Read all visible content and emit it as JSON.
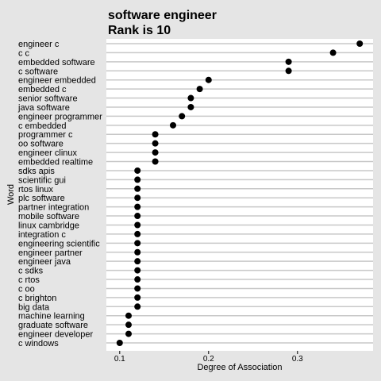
{
  "chart_data": {
    "type": "scatter",
    "title": "software engineer",
    "subtitle": "Rank is 10",
    "xlabel": "Degree of Association",
    "ylabel": "Word",
    "xlim": [
      0.085,
      0.385
    ],
    "xticks": [
      0.1,
      0.2,
      0.3
    ],
    "xtick_labels": [
      "0.1",
      "0.2",
      "0.3"
    ],
    "grid": "horizontal",
    "colors": {
      "background": "#e5e5e5",
      "panel": "#ffffff",
      "grid": "#c8c8c8",
      "point": "#000000"
    },
    "points": [
      {
        "label": "engineer c",
        "value": 0.37
      },
      {
        "label": "c c",
        "value": 0.34
      },
      {
        "label": "embedded software",
        "value": 0.29
      },
      {
        "label": "c software",
        "value": 0.29
      },
      {
        "label": "engineer embedded",
        "value": 0.2
      },
      {
        "label": "embedded c",
        "value": 0.19
      },
      {
        "label": "senior software",
        "value": 0.18
      },
      {
        "label": "java software",
        "value": 0.18
      },
      {
        "label": "engineer programmer",
        "value": 0.17
      },
      {
        "label": "c embedded",
        "value": 0.16
      },
      {
        "label": "programmer c",
        "value": 0.14
      },
      {
        "label": "oo software",
        "value": 0.14
      },
      {
        "label": "engineer clinux",
        "value": 0.14
      },
      {
        "label": "embedded realtime",
        "value": 0.14
      },
      {
        "label": "sdks apis",
        "value": 0.12
      },
      {
        "label": "scientific gui",
        "value": 0.12
      },
      {
        "label": "rtos linux",
        "value": 0.12
      },
      {
        "label": "plc software",
        "value": 0.12
      },
      {
        "label": "partner integration",
        "value": 0.12
      },
      {
        "label": "mobile software",
        "value": 0.12
      },
      {
        "label": "linux cambridge",
        "value": 0.12
      },
      {
        "label": "integration c",
        "value": 0.12
      },
      {
        "label": "engineering scientific",
        "value": 0.12
      },
      {
        "label": "engineer partner",
        "value": 0.12
      },
      {
        "label": "engineer java",
        "value": 0.12
      },
      {
        "label": "c sdks",
        "value": 0.12
      },
      {
        "label": "c rtos",
        "value": 0.12
      },
      {
        "label": "c oo",
        "value": 0.12
      },
      {
        "label": "c brighton",
        "value": 0.12
      },
      {
        "label": "big data",
        "value": 0.12
      },
      {
        "label": "machine learning",
        "value": 0.11
      },
      {
        "label": "graduate software",
        "value": 0.11
      },
      {
        "label": "engineer developer",
        "value": 0.11
      },
      {
        "label": "c windows",
        "value": 0.1
      }
    ]
  }
}
